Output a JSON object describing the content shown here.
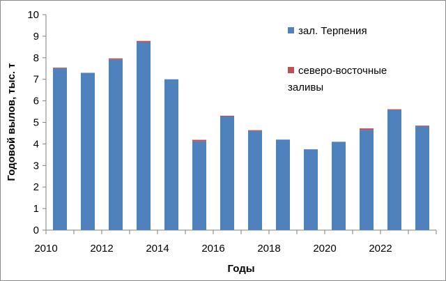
{
  "chart_data": {
    "type": "bar",
    "stacked": true,
    "xlabel": "Годы",
    "ylabel": "Годовой вылов, тыс. т",
    "ylim": [
      0,
      10
    ],
    "yticks": [
      "0",
      "1",
      "2",
      "3",
      "4",
      "5",
      "6",
      "7",
      "8",
      "9",
      "10"
    ],
    "categories": [
      "2010",
      "2011",
      "2012",
      "2013",
      "2014",
      "2015",
      "2016",
      "2017",
      "2018",
      "2019",
      "2020",
      "2021",
      "2022",
      "2023"
    ],
    "x_tick_labels": [
      "2010",
      "2012",
      "2014",
      "2016",
      "2018",
      "2020",
      "2022"
    ],
    "grid": false,
    "legend_position": "top-right",
    "series": [
      {
        "name": "зал. Терпения",
        "color": "#4f81bd",
        "values": [
          7.5,
          7.3,
          7.92,
          8.72,
          7.0,
          4.12,
          5.29,
          4.6,
          4.2,
          3.75,
          4.1,
          4.65,
          5.58,
          4.82
        ]
      },
      {
        "name": "северо-восточные заливы",
        "color": "#c0504d",
        "values": [
          0.04,
          0.0,
          0.05,
          0.06,
          0.0,
          0.07,
          0.02,
          0.04,
          0.0,
          0.0,
          0.0,
          0.07,
          0.03,
          0.03
        ]
      }
    ],
    "legend_labels": [
      "зал. Терпения",
      "северо-восточные",
      "заливы"
    ]
  }
}
